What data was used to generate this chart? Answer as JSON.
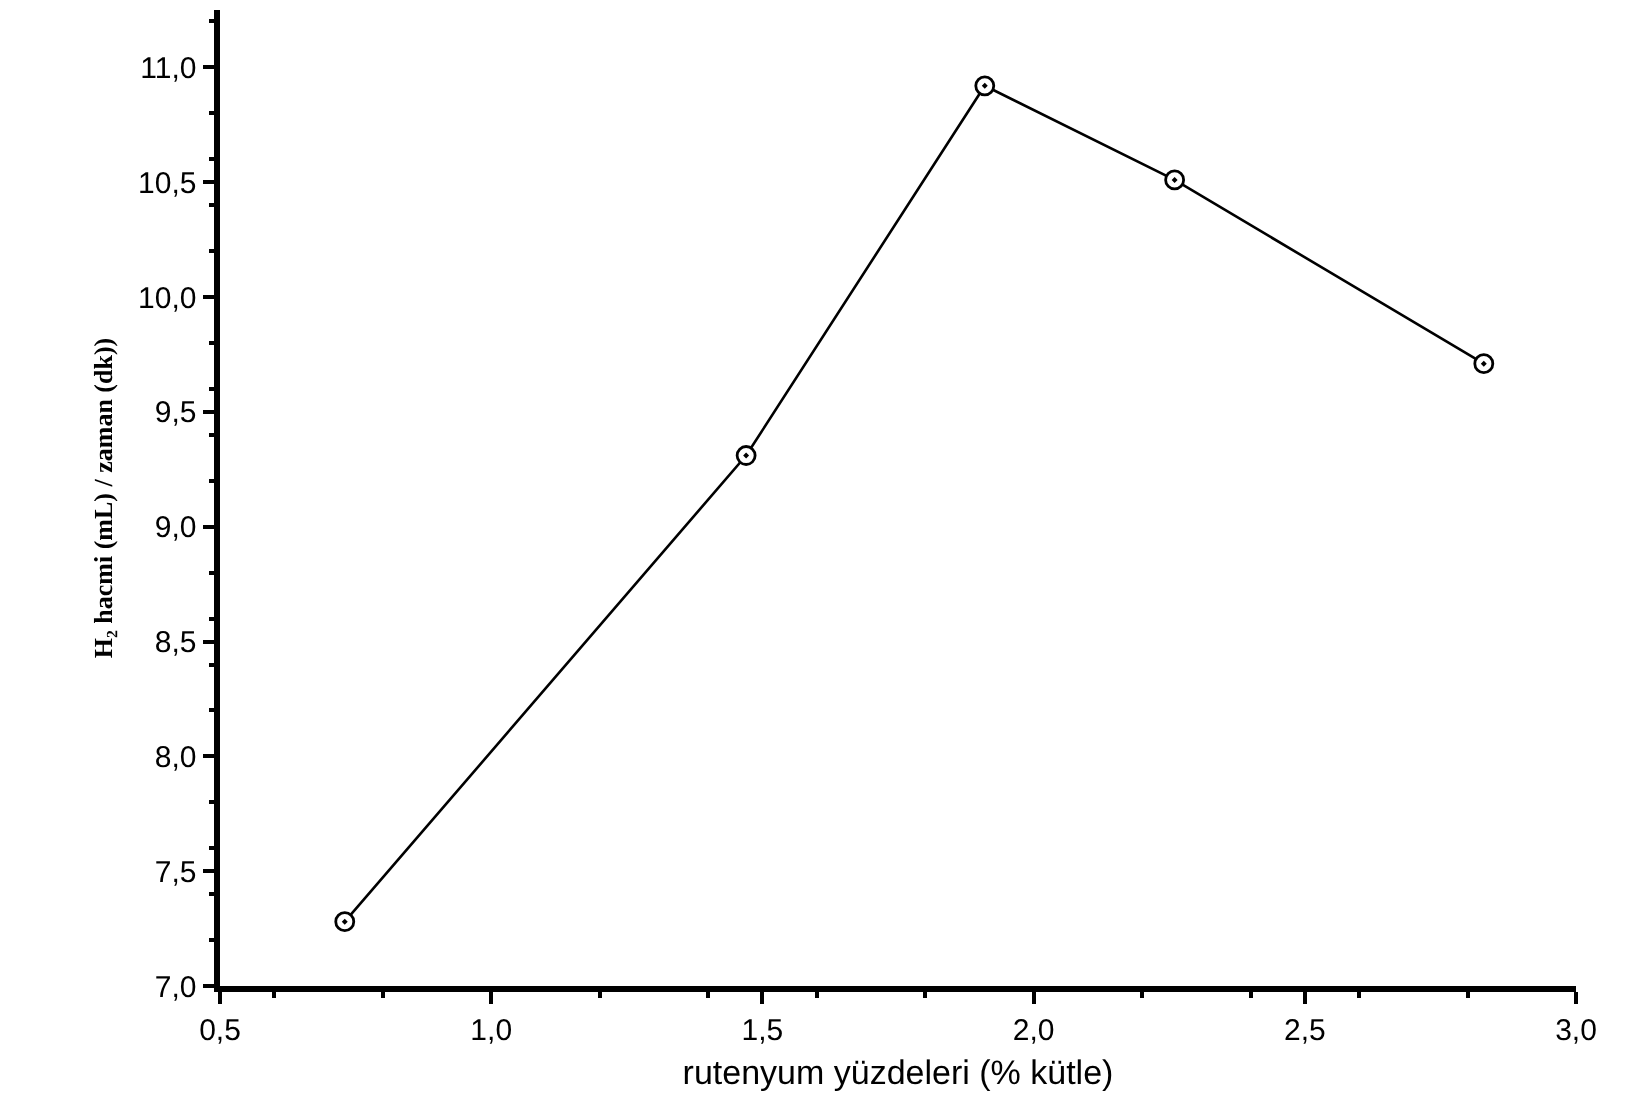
{
  "chart_data": {
    "type": "line",
    "xlabel": "rutenyum yüzdeleri (% kütle)",
    "ylabel": "H₂ hacmi (mL) / zaman (dk))",
    "x": [
      0.73,
      1.47,
      1.91,
      2.26,
      2.83
    ],
    "series": [
      {
        "color": "#000000",
        "values": [
          7.28,
          9.31,
          10.92,
          10.51,
          9.71
        ]
      }
    ],
    "xlim": [
      0.5,
      3.0
    ],
    "ylim": [
      7.0,
      11.25
    ],
    "xticks": [
      {
        "value": 0.5,
        "label": "0,5"
      },
      {
        "value": 1.0,
        "label": "1,0"
      },
      {
        "value": 1.5,
        "label": "1,5"
      },
      {
        "value": 2.0,
        "label": "2,0"
      },
      {
        "value": 2.5,
        "label": "2,5"
      },
      {
        "value": 3.0,
        "label": "3,0"
      }
    ],
    "yticks": [
      {
        "value": 7.0,
        "label": "7,0"
      },
      {
        "value": 7.5,
        "label": "7,5"
      },
      {
        "value": 8.0,
        "label": "8,0"
      },
      {
        "value": 8.5,
        "label": "8,5"
      },
      {
        "value": 9.0,
        "label": "9,0"
      },
      {
        "value": 9.5,
        "label": "9,5"
      },
      {
        "value": 10.0,
        "label": "10,0"
      },
      {
        "value": 10.5,
        "label": "10,5"
      },
      {
        "value": 11.0,
        "label": "11,0"
      }
    ],
    "marker": "circle",
    "line_style": "solid"
  }
}
